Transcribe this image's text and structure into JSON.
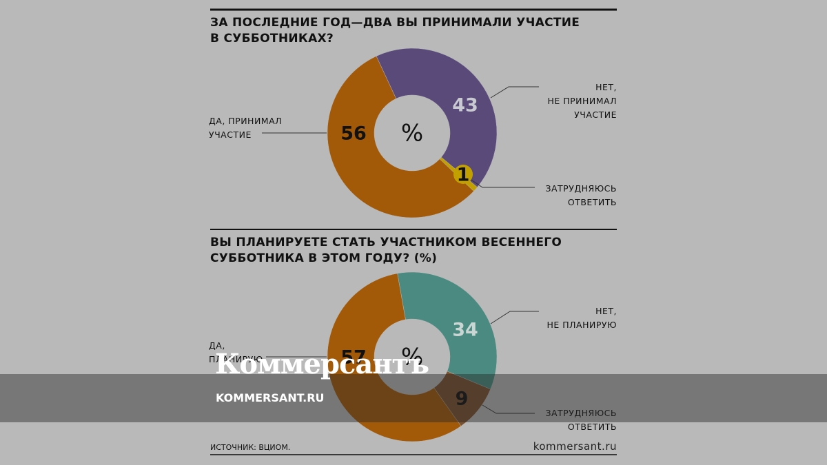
{
  "chart_data": [
    {
      "type": "pie",
      "title": "ЗА ПОСЛЕДНИЕ ГОД—ДВА ВЫ ПРИНИМАЛИ УЧАСТИЕ\nВ СУББОТНИКАХ?",
      "center_label": "%",
      "categories": [
        "НЕТ,\nНЕ ПРИНИМАЛ\nУЧАСТИЕ",
        "ЗАТРУДНЯЮСЬ\nОТВЕТИТЬ",
        "ДА, ПРИНИМАЛ\nУЧАСТИЕ"
      ],
      "values": [
        43,
        1,
        56
      ],
      "colors": [
        "#5a4a7a",
        "#c2a000",
        "#a35a08"
      ]
    },
    {
      "type": "pie",
      "title": "ВЫ ПЛАНИРУЕТЕ СТАТЬ УЧАСТНИКОМ ВЕСЕННЕГО\nСУББОТНИКА В ЭТОМ ГОДУ? (%)",
      "center_label": "%",
      "categories": [
        "НЕТ,\nНЕ ПЛАНИРУЮ",
        "ЗАТРУДНЯЮСЬ\nОТВЕТИТЬ",
        "ДА,\nПЛАНИРУЮ"
      ],
      "values": [
        34,
        9,
        57
      ],
      "colors": [
        "#4a8a80",
        "#7a5230",
        "#a35a08"
      ]
    }
  ],
  "footer": {
    "source": "ИСТОЧНИК: ВЦИОМ.",
    "site": "kommersant.ru"
  },
  "watermark": {
    "logo": "Коммерсантъ",
    "url": "KOMMERSANT.RU"
  }
}
